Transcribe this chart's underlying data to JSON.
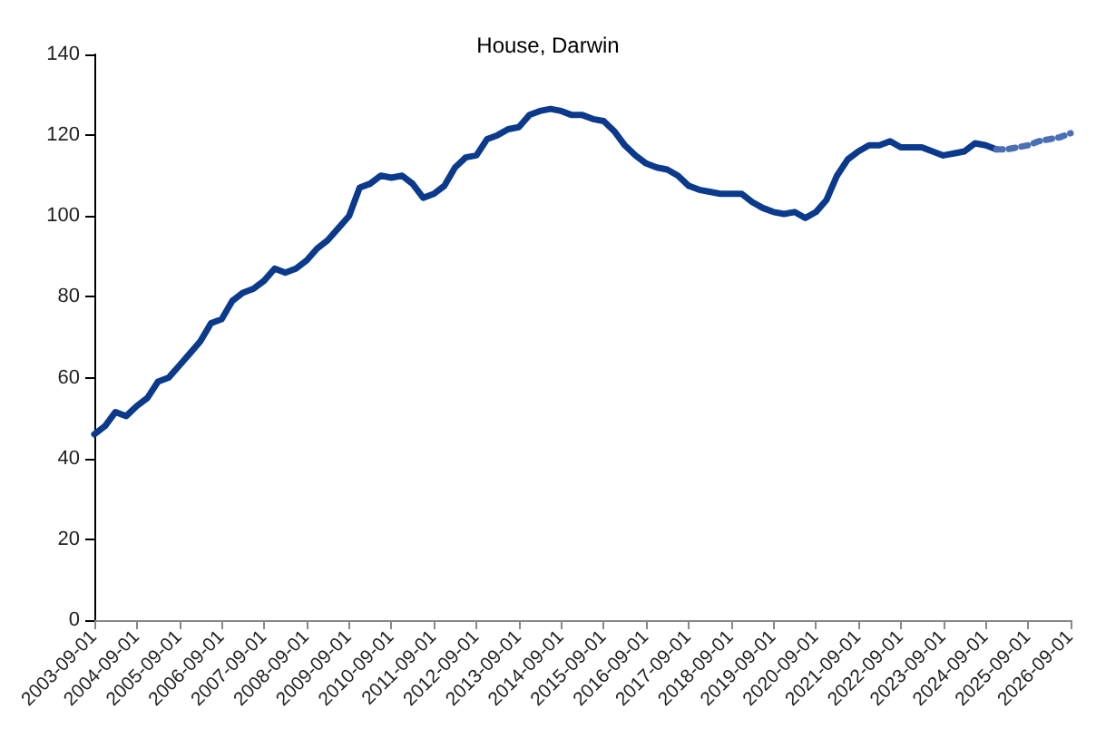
{
  "chart_data": {
    "type": "line",
    "title": "House, Darwin",
    "xlim": [
      "2003-09-01",
      "2026-09-01"
    ],
    "xticks": [
      "2003-09-01",
      "2004-09-01",
      "2005-09-01",
      "2006-09-01",
      "2007-09-01",
      "2008-09-01",
      "2009-09-01",
      "2010-09-01",
      "2011-09-01",
      "2012-09-01",
      "2013-09-01",
      "2014-09-01",
      "2015-09-01",
      "2016-09-01",
      "2017-09-01",
      "2018-09-01",
      "2019-09-01",
      "2020-09-01",
      "2021-09-01",
      "2022-09-01",
      "2023-09-01",
      "2024-09-01",
      "2025-09-01",
      "2026-09-01"
    ],
    "ylim": [
      0,
      140
    ],
    "yticks": [
      0,
      20,
      40,
      60,
      80,
      100,
      120,
      140
    ],
    "series": [
      {
        "color": "#0b3a8c",
        "line_style": "solid",
        "x": [
          "2003-09",
          "2003-12",
          "2004-03",
          "2004-06",
          "2004-09",
          "2004-12",
          "2005-03",
          "2005-06",
          "2005-09",
          "2005-12",
          "2006-03",
          "2006-06",
          "2006-09",
          "2006-12",
          "2007-03",
          "2007-06",
          "2007-09",
          "2007-12",
          "2008-03",
          "2008-06",
          "2008-09",
          "2008-12",
          "2009-03",
          "2009-06",
          "2009-09",
          "2009-12",
          "2010-03",
          "2010-06",
          "2010-09",
          "2010-12",
          "2011-03",
          "2011-06",
          "2011-09",
          "2011-12",
          "2012-03",
          "2012-06",
          "2012-09",
          "2012-12",
          "2013-03",
          "2013-06",
          "2013-09",
          "2013-12",
          "2014-03",
          "2014-06",
          "2014-09",
          "2014-12",
          "2015-03",
          "2015-06",
          "2015-09",
          "2015-12",
          "2016-03",
          "2016-06",
          "2016-09",
          "2016-12",
          "2017-03",
          "2017-06",
          "2017-09",
          "2017-12",
          "2018-03",
          "2018-06",
          "2018-09",
          "2018-12",
          "2019-03",
          "2019-06",
          "2019-09",
          "2019-12",
          "2020-03",
          "2020-06",
          "2020-09",
          "2020-12",
          "2021-03",
          "2021-06",
          "2021-09",
          "2021-12",
          "2022-03",
          "2022-06",
          "2022-09",
          "2022-12",
          "2023-03",
          "2023-06",
          "2023-09",
          "2023-12",
          "2024-03",
          "2024-06",
          "2024-09",
          "2024-12"
        ],
        "values": [
          46,
          48,
          51.5,
          50.5,
          53,
          55,
          59,
          60,
          63,
          66,
          69,
          73.5,
          74.5,
          79,
          81,
          82,
          84,
          87,
          86,
          87,
          89,
          92,
          94,
          97,
          100,
          107,
          108,
          110,
          109.5,
          110,
          108,
          104.5,
          105.5,
          107.5,
          112,
          114.5,
          115,
          119,
          120,
          121.5,
          122,
          125,
          126,
          126.5,
          126,
          125,
          125,
          124,
          123.5,
          121,
          117.5,
          115,
          113,
          112,
          111.5,
          110,
          107.5,
          106.5,
          106,
          105.5,
          105.5,
          105.5,
          103.5,
          102,
          101,
          100.5,
          101,
          99.5,
          101,
          104,
          110,
          114,
          116,
          117.5,
          117.5,
          118.5,
          117,
          117,
          117,
          116,
          115,
          115.5,
          116,
          118,
          117.5,
          116.5
        ]
      },
      {
        "color": "#4a6fb5",
        "line_style": "dotted",
        "x": [
          "2024-12",
          "2025-03",
          "2025-06",
          "2025-09",
          "2025-12",
          "2026-03",
          "2026-06",
          "2026-09"
        ],
        "values": [
          116.5,
          116.5,
          117,
          117.5,
          118.5,
          119,
          119.5,
          120.5
        ]
      }
    ]
  }
}
